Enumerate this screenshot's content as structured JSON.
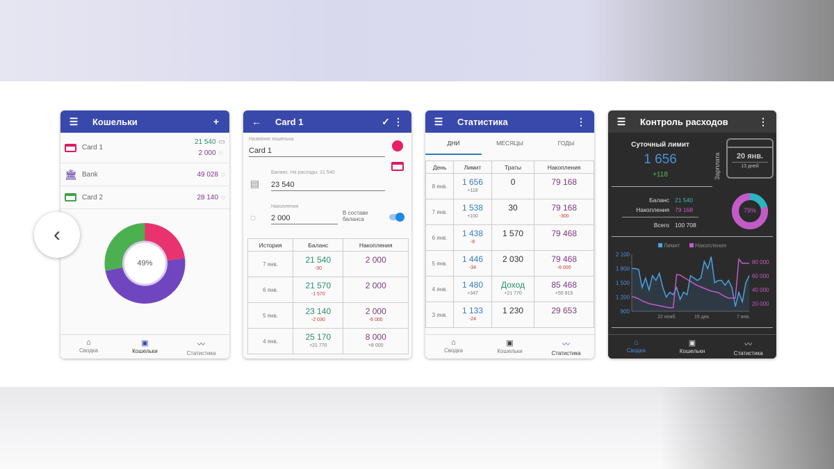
{
  "wallets": {
    "title": "Кошельки",
    "items": [
      {
        "name": "Card 1",
        "balance": "21 540",
        "savings": "2 000",
        "color": "#d81b60"
      },
      {
        "name": "Bank",
        "balance": "49 028",
        "color": "#4a2a9a"
      },
      {
        "name": "Card 2",
        "balance": "28 140",
        "color": "#43a047"
      }
    ],
    "donut_label": "49%",
    "donut": [
      {
        "value": 23,
        "color": "#e8336e"
      },
      {
        "value": 49,
        "color": "#7046c0"
      },
      {
        "value": 28,
        "color": "#4caf50"
      }
    ]
  },
  "nav": {
    "summary": "Сводка",
    "wallets": "Кошельки",
    "stats": "Статистика"
  },
  "card": {
    "title": "Card 1",
    "name_label": "Название кошелька",
    "name_value": "Card 1",
    "balance_label": "Баланс. На расходы: 21 540",
    "balance_value": "23 540",
    "savings_label": "Накопления",
    "savings_value": "2 000",
    "include_label": "В составе баланса",
    "include_on": true,
    "color": "#e91e63",
    "headers": [
      "История",
      "Баланс",
      "Накопления"
    ],
    "rows": [
      {
        "d": "7 янв.",
        "b": "21 540",
        "bd": "-30",
        "s": "2 000",
        "sd": ""
      },
      {
        "d": "6 янв.",
        "b": "21 570",
        "bd": "-1 570",
        "s": "2 000",
        "sd": ""
      },
      {
        "d": "5 янв.",
        "b": "23 140",
        "bd": "-2 030",
        "s": "2 000",
        "sd": "-6 000"
      },
      {
        "d": "4 янв.",
        "b": "25 170",
        "bd": "+21 770",
        "s": "8 000",
        "sd": "+8 000"
      }
    ]
  },
  "stats": {
    "title": "Статистика",
    "tabs": [
      "ДНИ",
      "МЕСЯЦЫ",
      "ГОДЫ"
    ],
    "headers": [
      "День",
      "Лимит",
      "Траты",
      "Накопления"
    ],
    "rows": [
      {
        "d": "8 янв.",
        "l": "1 656",
        "ld": "+118",
        "t": "0",
        "td": "",
        "s": "79 168",
        "sd": ""
      },
      {
        "d": "7 янв.",
        "l": "1 538",
        "ld": "+100",
        "t": "30",
        "td": "",
        "s": "79 168",
        "sd": "-300"
      },
      {
        "d": "6 янв.",
        "l": "1 438",
        "ld": "-8",
        "t": "1 570",
        "td": "",
        "s": "79 468",
        "sd": ""
      },
      {
        "d": "5 янв.",
        "l": "1 446",
        "ld": "-34",
        "t": "2 030",
        "td": "",
        "s": "79 468",
        "sd": "-6 000"
      },
      {
        "d": "4 янв.",
        "l": "1 480",
        "ld": "+347",
        "t": "Доход",
        "td": "+21 770",
        "s": "85 468",
        "sd": "+55 815"
      },
      {
        "d": "3 янв.",
        "l": "1 133",
        "ld": "-24",
        "t": "1 230",
        "td": "",
        "s": "29 653",
        "sd": ""
      }
    ]
  },
  "control": {
    "title": "Контроль расходов",
    "daily_label": "Суточный лимит",
    "daily_value": "1 656",
    "daily_delta": "+118",
    "salary_label": "Зарплата",
    "salary_date": "20 янв.",
    "salary_days": "13 дней",
    "balance_label": "Баланс",
    "balance_value": "21 540",
    "savings_label": "Накопления",
    "savings_value": "79 168",
    "total_label": "Всего",
    "total_value": "100 708",
    "ring_label": "79%",
    "ring_fraction": 0.79
  },
  "chart_data": {
    "type": "line",
    "legend": [
      "Лимит",
      "Накопления"
    ],
    "left_ticks": [
      "2 100",
      "1 800",
      "1 500",
      "1 200",
      "900"
    ],
    "right_ticks": [
      "80 000",
      "60 000",
      "40 000",
      "20 000"
    ],
    "x_ticks": [
      "22 нояб.",
      "15 дек.",
      "7 янв."
    ],
    "ylim_left": [
      900,
      2100
    ],
    "ylim_right": [
      9000,
      91000
    ],
    "series": [
      {
        "name": "Лимит",
        "color": "#4aa3df",
        "values": [
          1800,
          1800,
          1780,
          1400,
          1600,
          1350,
          1650,
          1550,
          1700,
          1400,
          1200,
          1300,
          1250,
          1400,
          1150,
          1300,
          1250,
          1650,
          1600,
          1550,
          1600,
          1950,
          1800,
          2050,
          1500,
          1550,
          1550,
          1450,
          1550,
          1400,
          1000,
          1300,
          1100,
          1500,
          1650
        ]
      },
      {
        "name": "Накопления",
        "color": "#c45ac8",
        "values": [
          30000,
          29000,
          27000,
          24000,
          22000,
          20000,
          19000,
          18000,
          17000,
          16000,
          15000,
          14000,
          14000,
          62000,
          61000,
          58000,
          55000,
          52000,
          49000,
          46000,
          44000,
          42000,
          40000,
          38000,
          37000,
          36000,
          33000,
          30000,
          28000,
          28000,
          28000,
          84000,
          78000,
          78000,
          78000
        ]
      }
    ]
  }
}
